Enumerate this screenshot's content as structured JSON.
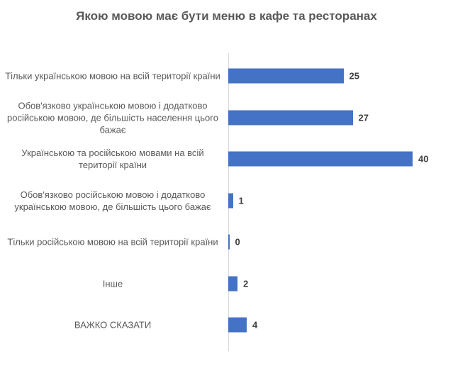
{
  "chart_data": {
    "type": "bar",
    "orientation": "horizontal",
    "title": "Якою мовою має бути меню в кафе та ресторанах",
    "categories": [
      "Тільки українською мовою на всій території країни",
      "Обов'язково українською мовою і додатково російською мовою, де більшість населення цього бажає",
      "Українською та російською мовами на всій території країни",
      "Обов'язково російською мовою і додатково українською мовою, де більшість цього бажає",
      "Тільки російською мовою на всій території країни",
      "Інше",
      "ВАЖКО СКАЗАТИ"
    ],
    "values": [
      25,
      27,
      40,
      1,
      0,
      2,
      4
    ],
    "xlim": [
      0,
      40
    ],
    "grid": false,
    "legend": "none",
    "bar_color": "#4472C4",
    "data_labels": true
  }
}
